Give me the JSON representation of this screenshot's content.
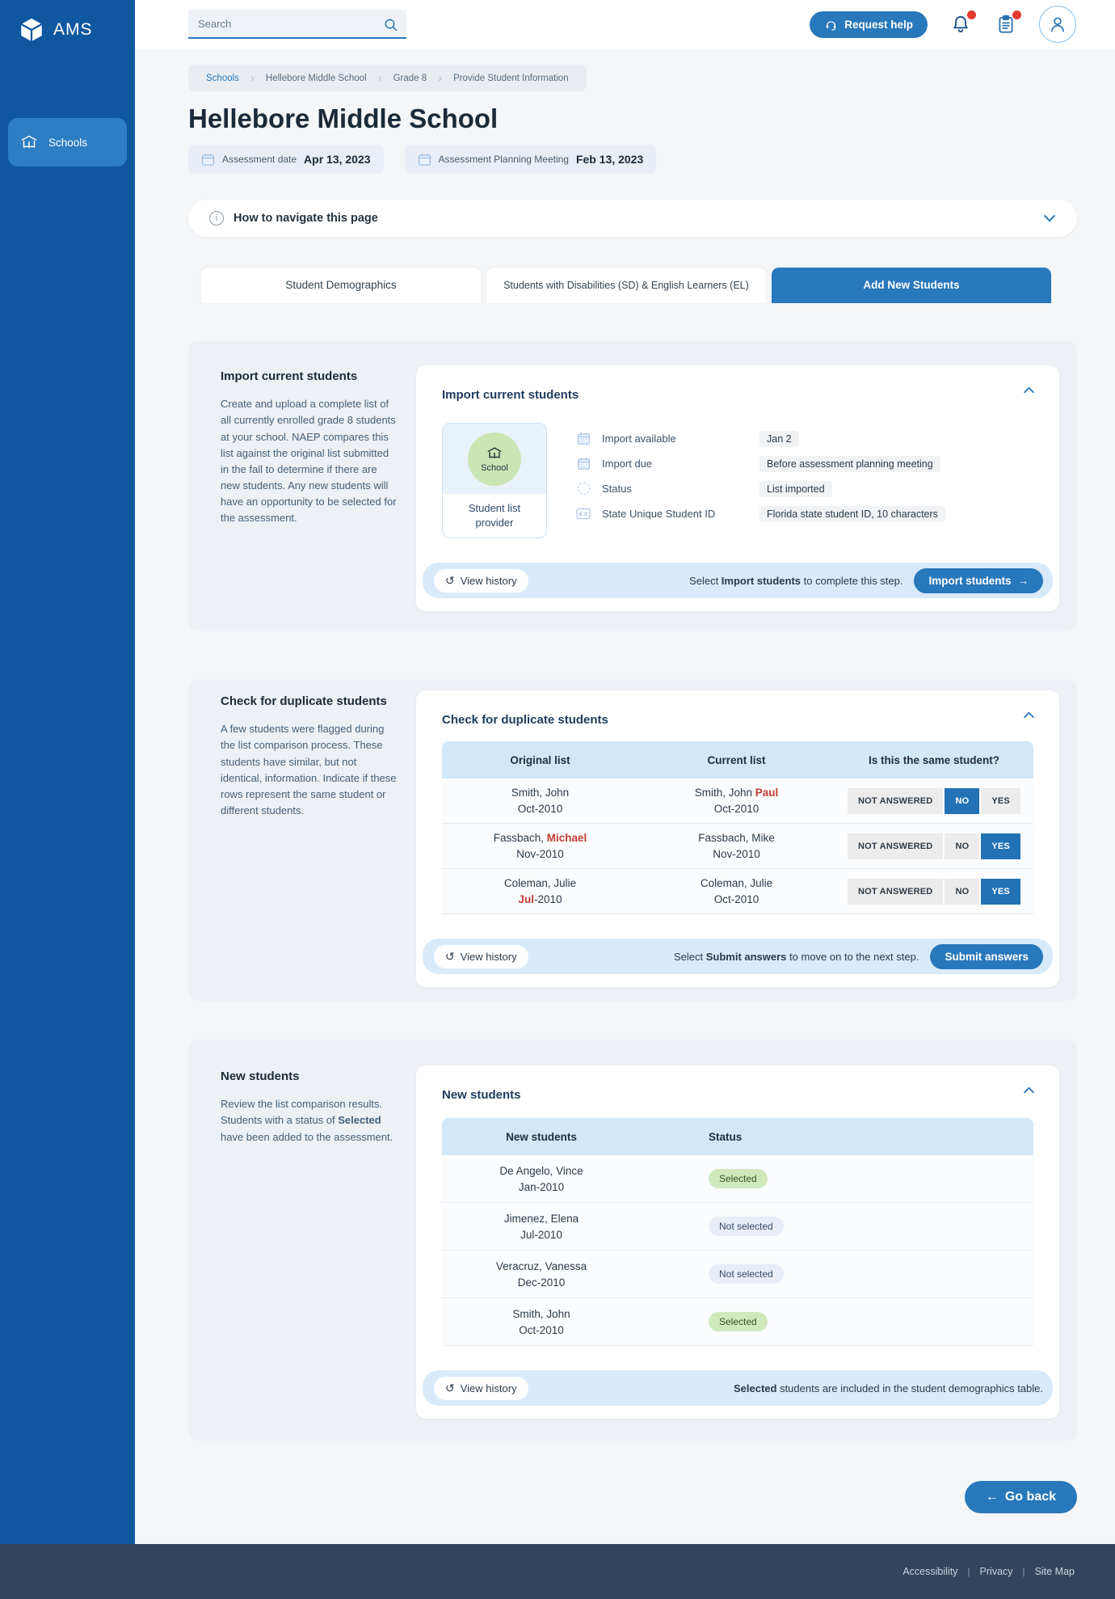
{
  "brand": {
    "name": "AMS"
  },
  "sidebar": {
    "items": [
      {
        "label": "Schools",
        "active": true
      }
    ]
  },
  "topbar": {
    "search_placeholder": "Search",
    "request_help_label": "Request help"
  },
  "breadcrumb": {
    "items": [
      "Schools",
      "Hellebore Middle School",
      "Grade 8",
      "Provide Student Information"
    ]
  },
  "page": {
    "title": "Hellebore Middle School",
    "assessment_date": {
      "label": "Assessment date",
      "value": "Apr 13, 2023"
    },
    "planning_meeting": {
      "label": "Assessment Planning Meeting",
      "value": "Feb 13, 2023"
    },
    "navigate_bar": {
      "label": "How to navigate this page"
    }
  },
  "tabs": [
    {
      "label": "Student Demographics",
      "active": false,
      "two_line": false
    },
    {
      "label": "Students with Disabilities (SD) & English Learners (EL)",
      "active": false,
      "two_line": true
    },
    {
      "label": "Add New Students",
      "active": true,
      "two_line": false
    }
  ],
  "common": {
    "view_history": "View history"
  },
  "import_section": {
    "aside_title": "Import current students",
    "aside_body": "Create and upload a complete list of all currently enrolled grade 8 students at your school. NAEP compares this list against the original list submitted in the fall to determine if there are new students. Any new students will have an opportunity to be selected for the assessment.",
    "card_title": "Import current students",
    "provider_tile": {
      "circle_label": "School",
      "caption": "Student list provider"
    },
    "details": [
      {
        "icon": "calendar",
        "label": "Import available",
        "value": "Jan 2"
      },
      {
        "icon": "calendar",
        "label": "Import due",
        "value": "Before assessment planning meeting"
      },
      {
        "icon": "status-circle",
        "label": "Status",
        "value": "List imported"
      },
      {
        "icon": "id-card",
        "label": "State Unique Student ID",
        "value": "Florida state student ID, 10 characters"
      }
    ],
    "footer": {
      "hint_prefix": "Select ",
      "hint_bold": "Import students",
      "hint_suffix": " to complete this step.",
      "button_label": "Import students",
      "button_arrow": "→"
    }
  },
  "duplicates_section": {
    "aside_title": "Check for duplicate students",
    "aside_body": "A few students were flagged during the list comparison process. These students have similar, but not identical, information. Indicate if these rows represent the same student or different students.",
    "card_title": "Check for duplicate students",
    "table": {
      "headers": [
        "Original list",
        "Current list",
        "Is this the same student?"
      ],
      "answer_options": [
        "NOT ANSWERED",
        "NO",
        "YES"
      ],
      "rows": [
        {
          "original_name": [
            {
              "text": "Smith, John"
            }
          ],
          "original_date": [
            {
              "text": "Oct-2010"
            }
          ],
          "current_name": [
            {
              "text": "Smith, John "
            },
            {
              "text": "Paul",
              "red": true
            }
          ],
          "current_date": [
            {
              "text": "Oct-2010"
            }
          ],
          "answer": "NO"
        },
        {
          "original_name": [
            {
              "text": "Fassbach, "
            },
            {
              "text": "Michael",
              "red": true
            }
          ],
          "original_date": [
            {
              "text": "Nov-2010"
            }
          ],
          "current_name": [
            {
              "text": "Fassbach, Mike"
            }
          ],
          "current_date": [
            {
              "text": "Nov-2010"
            }
          ],
          "answer": "YES"
        },
        {
          "original_name": [
            {
              "text": "Coleman, Julie"
            }
          ],
          "original_date": [
            {
              "text": "Jul",
              "red": true
            },
            {
              "text": "-2010"
            }
          ],
          "current_name": [
            {
              "text": "Coleman, Julie"
            }
          ],
          "current_date": [
            {
              "text": "Oct-2010"
            }
          ],
          "answer": "YES"
        }
      ]
    },
    "footer": {
      "hint_prefix": "Select ",
      "hint_bold": "Submit answers",
      "hint_suffix": " to move on to the next step.",
      "button_label": "Submit answers"
    }
  },
  "new_students_section": {
    "aside_title": "New students",
    "aside_body_parts": {
      "prefix": "Review the list comparison results. Students with a status of ",
      "bold": "Selected",
      "suffix": " have been added to the assessment."
    },
    "card_title": "New students",
    "table": {
      "headers": [
        "New students",
        "Status"
      ],
      "rows": [
        {
          "name": "De Angelo, Vince",
          "date": "Jan-2010",
          "status": "Selected"
        },
        {
          "name": "Jimenez, Elena",
          "date": "Jul-2010",
          "status": "Not selected"
        },
        {
          "name": "Veracruz, Vanessa",
          "date": "Dec-2010",
          "status": "Not selected"
        },
        {
          "name": "Smith, John",
          "date": "Oct-2010",
          "status": "Selected"
        }
      ]
    },
    "footer": {
      "hint_bold": "Selected",
      "hint_suffix": " students are included in the student demographics table."
    }
  },
  "go_back": {
    "arrow": "←",
    "label": "Go back"
  },
  "footer": {
    "links": [
      "Accessibility",
      "Privacy",
      "Site Map"
    ]
  },
  "colors": {
    "sidebar_blue": "#0f58a0",
    "accent_blue": "#2878bc",
    "selected_blue": "#2272b5",
    "alert_red": "#e23b2e",
    "red_text": "#c23b33",
    "badge_green": "#cfe9bd",
    "badge_gray": "#e8edf8",
    "table_header_blue": "#d2e7f8",
    "bar_blue": "#d9eafa"
  }
}
